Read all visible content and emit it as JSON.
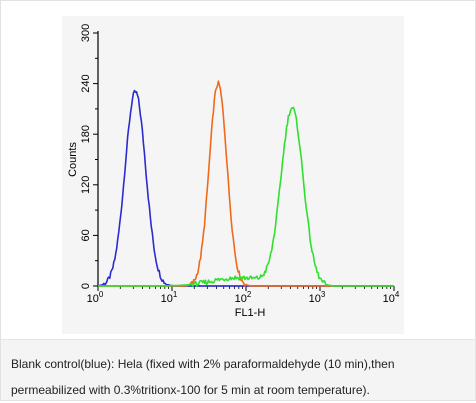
{
  "chart_data": {
    "type": "line",
    "title": "",
    "xlabel": "FL1-H",
    "ylabel": "Counts",
    "xscale": "log",
    "xlim": [
      1,
      10000
    ],
    "ylim": [
      0,
      300
    ],
    "y_ticks": [
      "0",
      "60",
      "120",
      "180",
      "240",
      "300"
    ],
    "x_ticks": [
      {
        "base": "10",
        "exp": "0"
      },
      {
        "base": "10",
        "exp": "1"
      },
      {
        "base": "10",
        "exp": "2"
      },
      {
        "base": "10",
        "exp": "3"
      },
      {
        "base": "10",
        "exp": "4"
      }
    ],
    "grid": false,
    "series": [
      {
        "color": "#2b2bd0",
        "peaks": [
          {
            "center": 3.2,
            "height": 230,
            "width_decades": 0.14
          }
        ]
      },
      {
        "color": "#f06a1a",
        "peaks": [
          {
            "center": 42,
            "height": 240,
            "width_decades": 0.12
          }
        ]
      },
      {
        "color": "#2fe02f",
        "peaks": [
          {
            "center": 420,
            "height": 210,
            "width_decades": 0.15
          },
          {
            "center": 80,
            "height": 10,
            "width_decades": 0.35
          }
        ]
      }
    ]
  },
  "caption": {
    "line1": "Blank control(blue): Hela (fixed with 2% paraformaldehyde (10 min),then",
    "line2": "permeabilized with 0.3%tritionx-100 for 5 min at room temperature)."
  }
}
